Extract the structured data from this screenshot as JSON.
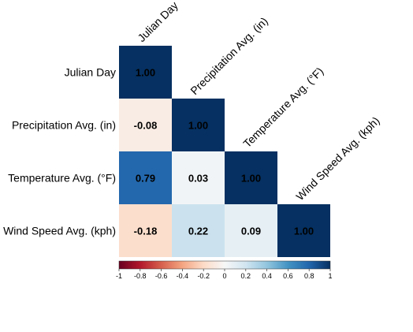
{
  "chart_data": {
    "type": "heatmap",
    "variables": [
      "Julian Day",
      "Precipitation Avg. (in)",
      "Temperature Avg. (°F)",
      "Wind Speed Avg. (kph)"
    ],
    "cells": [
      {
        "row": 0,
        "col": 0,
        "value": 1.0,
        "label": "1.00"
      },
      {
        "row": 1,
        "col": 0,
        "value": -0.08,
        "label": "-0.08"
      },
      {
        "row": 1,
        "col": 1,
        "value": 1.0,
        "label": "1.00"
      },
      {
        "row": 2,
        "col": 0,
        "value": 0.79,
        "label": "0.79"
      },
      {
        "row": 2,
        "col": 1,
        "value": 0.03,
        "label": "0.03"
      },
      {
        "row": 2,
        "col": 2,
        "value": 1.0,
        "label": "1.00"
      },
      {
        "row": 3,
        "col": 0,
        "value": -0.18,
        "label": "-0.18"
      },
      {
        "row": 3,
        "col": 1,
        "value": 0.22,
        "label": "0.22"
      },
      {
        "row": 3,
        "col": 2,
        "value": 0.09,
        "label": "0.09"
      },
      {
        "row": 3,
        "col": 3,
        "value": 1.0,
        "label": "1.00"
      }
    ],
    "colorscale": {
      "range": [
        -1,
        1
      ],
      "ticks": [
        "-1",
        "-0.8",
        "-0.6",
        "-0.4",
        "-0.2",
        "0",
        "0.2",
        "0.4",
        "0.6",
        "0.8",
        "1"
      ],
      "colors": [
        "#67001f",
        "#b2182b",
        "#d6604d",
        "#f4a582",
        "#fddbc7",
        "#f7f7f7",
        "#d1e5f0",
        "#92c5de",
        "#4393c3",
        "#2166ac",
        "#053061"
      ]
    },
    "legend_position": "bottom",
    "triangle": "lower"
  }
}
